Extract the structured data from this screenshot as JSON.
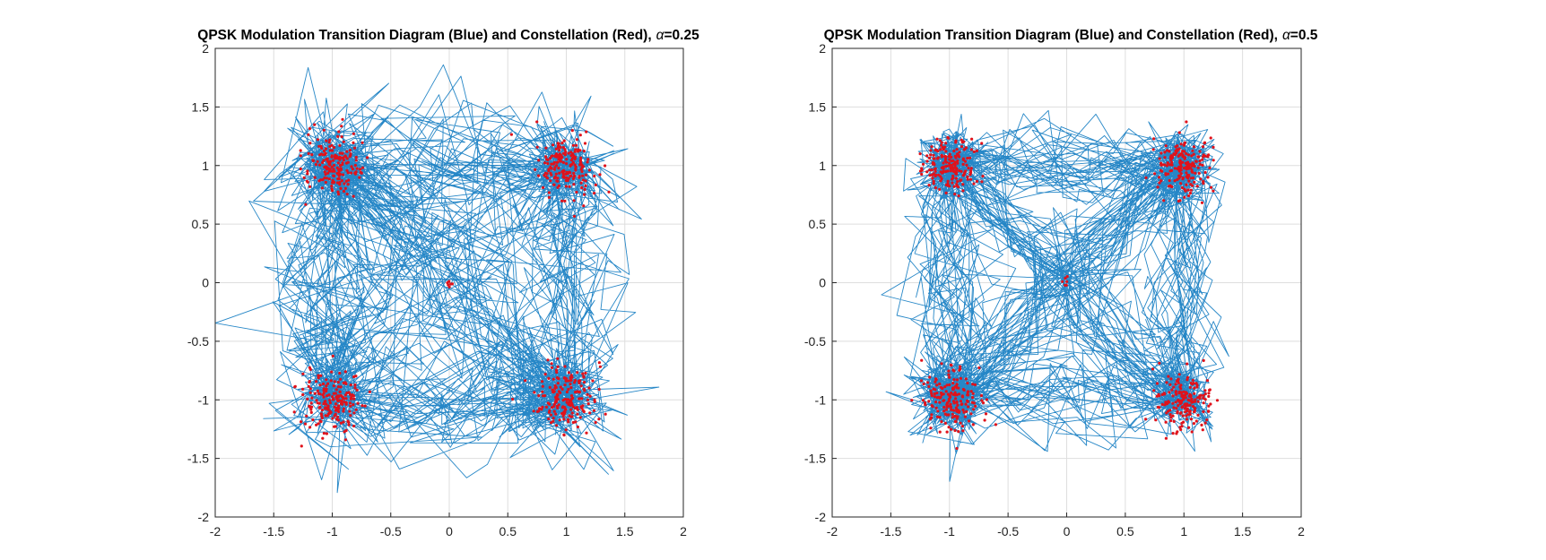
{
  "colors": {
    "trajectory": "#0072BD",
    "constellation": "#E0121B",
    "grid": "#dedede",
    "axis": "#262626"
  },
  "chart_data": [
    {
      "type": "scatter",
      "title_main": "QPSK Modulation Transition Diagram (Blue) and Constellation (Red),",
      "title_alpha": "α",
      "title_value": "=0.25",
      "xlim": [
        -2,
        2
      ],
      "ylim": [
        -2,
        2
      ],
      "xticks": [
        -2,
        -1.5,
        -1,
        -0.5,
        0,
        0.5,
        1,
        1.5,
        2
      ],
      "yticks": [
        -2,
        -1.5,
        -1,
        -0.5,
        0,
        0.5,
        1,
        1.5,
        2
      ],
      "xtick_labels": [
        "-2",
        "-1.5",
        "-1",
        "-0.5",
        "0",
        "0.5",
        "1",
        "1.5",
        "2"
      ],
      "ytick_labels": [
        "-2",
        "-1.5",
        "-1",
        "-0.5",
        "0",
        "0.5",
        "1",
        "1.5",
        "2"
      ],
      "grid": true,
      "series": [
        {
          "values": "trajectory",
          "style": "line",
          "color": "#0072BD",
          "symbol_points": [
            [
              1,
              1
            ],
            [
              -1,
              1
            ],
            [
              -1,
              -1
            ],
            [
              1,
              -1
            ]
          ],
          "symbol_spread": 0.12,
          "trajectory_spread": 0.55
        },
        {
          "values": "constellation",
          "style": "markers",
          "color": "#E0121B",
          "centers": [
            [
              1,
              1
            ],
            [
              -1,
              1
            ],
            [
              -1,
              -1
            ],
            [
              1,
              -1
            ],
            [
              0,
              0
            ]
          ],
          "spread": 0.13
        }
      ]
    },
    {
      "type": "scatter",
      "title_main": "QPSK Modulation Transition Diagram (Blue) and Constellation (Red),",
      "title_alpha": "α",
      "title_value": "=0.5",
      "xlim": [
        -2,
        2
      ],
      "ylim": [
        -2,
        2
      ],
      "xticks": [
        -2,
        -1.5,
        -1,
        -0.5,
        0,
        0.5,
        1,
        1.5,
        2
      ],
      "yticks": [
        -2,
        -1.5,
        -1,
        -0.5,
        0,
        0.5,
        1,
        1.5,
        2
      ],
      "xtick_labels": [
        "-2",
        "-1.5",
        "-1",
        "-0.5",
        "0",
        "0.5",
        "1",
        "1.5",
        "2"
      ],
      "ytick_labels": [
        "-2",
        "-1.5",
        "-1",
        "-0.5",
        "0",
        "0.5",
        "1",
        "1.5",
        "2"
      ],
      "grid": true,
      "series": [
        {
          "values": "trajectory",
          "style": "line",
          "color": "#0072BD",
          "symbol_points": [
            [
              1,
              1
            ],
            [
              -1,
              1
            ],
            [
              -1,
              -1
            ],
            [
              1,
              -1
            ]
          ],
          "symbol_spread": 0.12,
          "trajectory_spread": 0.25
        },
        {
          "values": "constellation",
          "style": "markers",
          "color": "#E0121B",
          "centers": [
            [
              1,
              1
            ],
            [
              -1,
              1
            ],
            [
              -1,
              -1
            ],
            [
              1,
              -1
            ],
            [
              0,
              0
            ]
          ],
          "spread": 0.12
        }
      ]
    }
  ]
}
